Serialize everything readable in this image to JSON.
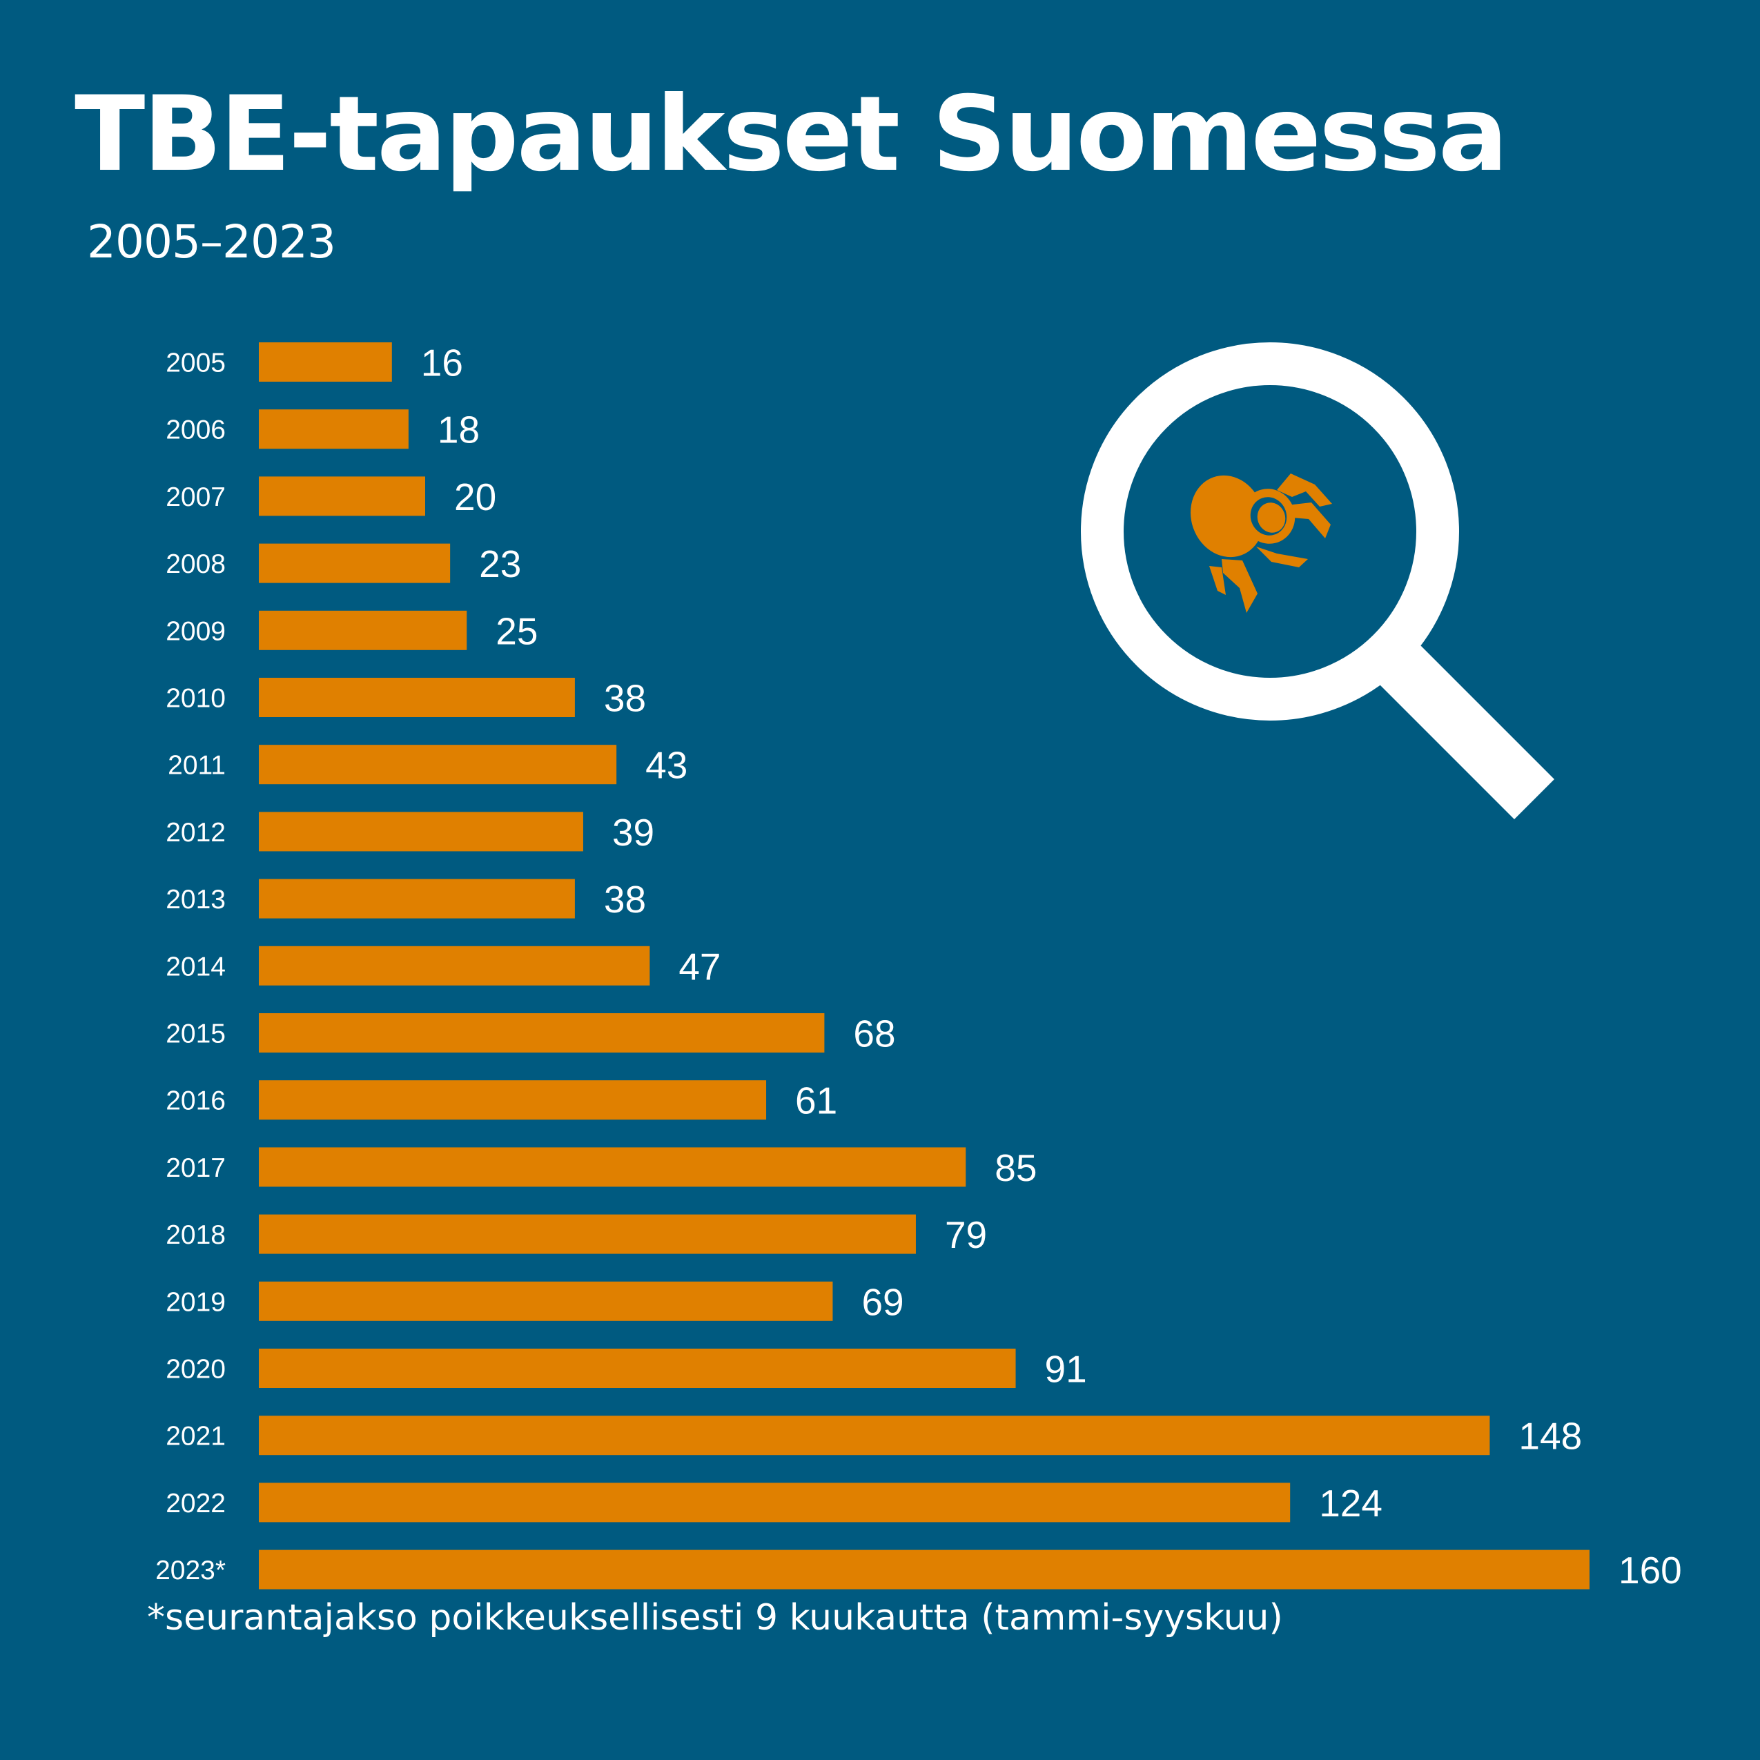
{
  "title": "TBE-tapaukset Suomessa",
  "subtitle": "2005–2023",
  "footnote": "*seurantajakso poikkeuksellisesti 9 kuukautta (tammi-syyskuu)",
  "colors": {
    "background": "#005a80",
    "bar": "#e08000",
    "text": "#ffffff"
  },
  "icons": [
    "magnifier-icon",
    "tick-icon"
  ],
  "chart_data": {
    "type": "bar",
    "orientation": "horizontal",
    "categories": [
      "2005",
      "2006",
      "2007",
      "2008",
      "2009",
      "2010",
      "2011",
      "2012",
      "2013",
      "2014",
      "2015",
      "2016",
      "2017",
      "2018",
      "2019",
      "2020",
      "2021",
      "2022",
      "2023*"
    ],
    "values": [
      16,
      18,
      20,
      23,
      25,
      38,
      43,
      39,
      38,
      47,
      68,
      61,
      85,
      79,
      69,
      91,
      148,
      124,
      160
    ],
    "data_labels": [
      "16",
      "18",
      "20",
      "23",
      "25",
      "38",
      "43",
      "39",
      "38",
      "47",
      "68",
      "61",
      "85",
      "79",
      "69",
      "91",
      "148",
      "124",
      "160"
    ],
    "xlim": [
      0,
      160
    ],
    "grid": false,
    "legend": "none"
  }
}
